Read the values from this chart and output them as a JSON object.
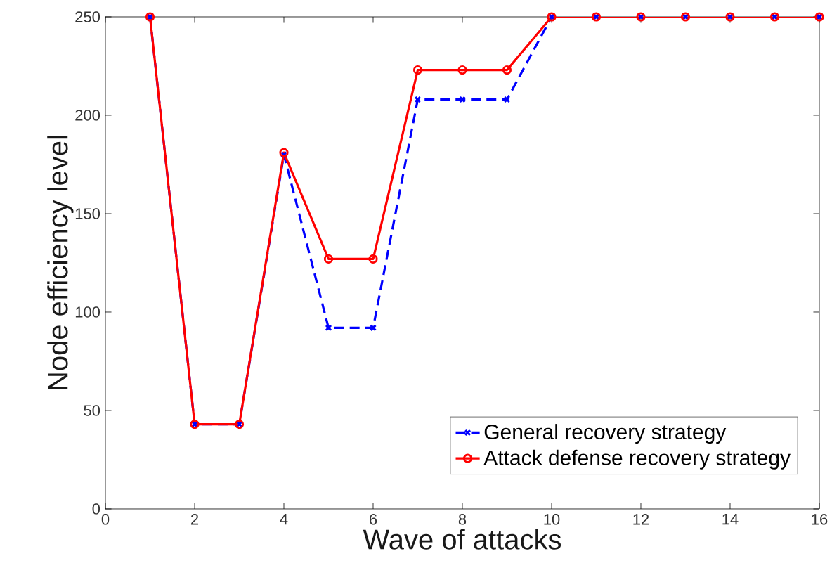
{
  "chart_data": {
    "type": "line",
    "xlabel": "Wave of attacks",
    "ylabel": "Node efficiency level",
    "x": [
      1,
      2,
      3,
      4,
      5,
      6,
      7,
      8,
      9,
      10,
      11,
      12,
      13,
      14,
      15,
      16
    ],
    "series": [
      {
        "name": "General recovery strategy",
        "color": "#0000ff",
        "marker": "cross",
        "line_style": "dashed",
        "values": [
          250,
          43,
          43,
          180,
          92,
          92,
          208,
          208,
          208,
          250,
          250,
          250,
          250,
          250,
          250,
          250
        ]
      },
      {
        "name": "Attack defense recovery strategy",
        "color": "#ff0000",
        "marker": "circle",
        "line_style": "solid",
        "values": [
          250,
          43,
          43,
          181,
          127,
          127,
          223,
          223,
          223,
          250,
          250,
          250,
          250,
          250,
          250,
          250
        ]
      }
    ],
    "xlim": [
      0,
      16
    ],
    "ylim": [
      0,
      250
    ],
    "xticks": [
      0,
      2,
      4,
      6,
      8,
      10,
      12,
      14,
      16
    ],
    "yticks": [
      0,
      50,
      100,
      150,
      200,
      250
    ],
    "grid": false,
    "legend": "bottom right"
  }
}
